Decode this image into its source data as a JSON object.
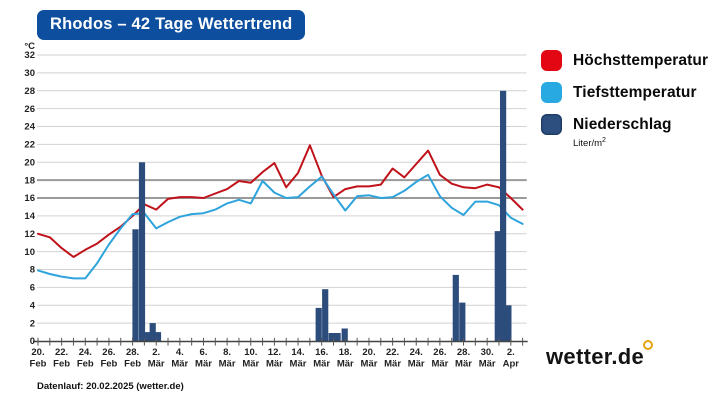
{
  "header": {
    "title": "Rhodos – 42 Tage Wettertrend"
  },
  "legend": {
    "items": [
      {
        "label": "Höchsttemperatur",
        "color": "#e30613"
      },
      {
        "label": "Tiefsttemperatur",
        "color": "#29a9e1"
      },
      {
        "label": "Niederschlag",
        "color": "#2d4f7f",
        "unit_base": "Liter/m",
        "unit_sup": "2"
      }
    ]
  },
  "footer": {
    "datenlauf": "Datenlauf: 20.02.2025 (wetter.de)"
  },
  "logo": {
    "text": "wetter.de",
    "ring_color": "#e6a410"
  },
  "chart_data": {
    "type": "line+bar",
    "x": {
      "days": 42,
      "start_label": "20. Feb",
      "end_label": "2. Apr",
      "tick_labels": [
        {
          "d": 0,
          "day": "20.",
          "month": "Feb"
        },
        {
          "d": 2,
          "day": "22.",
          "month": "Feb"
        },
        {
          "d": 4,
          "day": "24.",
          "month": "Feb"
        },
        {
          "d": 6,
          "day": "26.",
          "month": "Feb"
        },
        {
          "d": 8,
          "day": "28.",
          "month": "Feb"
        },
        {
          "d": 10,
          "day": "2.",
          "month": "Mär"
        },
        {
          "d": 12,
          "day": "4.",
          "month": "Mär"
        },
        {
          "d": 14,
          "day": "6.",
          "month": "Mär"
        },
        {
          "d": 16,
          "day": "8.",
          "month": "Mär"
        },
        {
          "d": 18,
          "day": "10.",
          "month": "Mär"
        },
        {
          "d": 20,
          "day": "12.",
          "month": "Mär"
        },
        {
          "d": 22,
          "day": "14.",
          "month": "Mär"
        },
        {
          "d": 24,
          "day": "16.",
          "month": "Mär"
        },
        {
          "d": 26,
          "day": "18.",
          "month": "Mär"
        },
        {
          "d": 28,
          "day": "20.",
          "month": "Mär"
        },
        {
          "d": 30,
          "day": "22.",
          "month": "Mär"
        },
        {
          "d": 32,
          "day": "24.",
          "month": "Mär"
        },
        {
          "d": 34,
          "day": "26.",
          "month": "Mär"
        },
        {
          "d": 36,
          "day": "28.",
          "month": "Mär"
        },
        {
          "d": 38,
          "day": "30.",
          "month": "Mär"
        },
        {
          "d": 40,
          "day": "2.",
          "month": "Apr"
        }
      ]
    },
    "y": {
      "label": "°C",
      "min": 0,
      "max": 32,
      "step": 2,
      "reference_gridlines": [
        16,
        18
      ]
    },
    "series": [
      {
        "name": "Höchsttemperatur",
        "type": "line",
        "color": "#c0121a",
        "values": [
          12.0,
          11.6,
          10.4,
          9.4,
          10.2,
          10.9,
          11.9,
          12.8,
          14.0,
          15.3,
          14.7,
          15.9,
          16.1,
          16.1,
          16.0,
          16.5,
          17.0,
          17.9,
          17.7,
          18.9,
          19.9,
          17.2,
          18.8,
          21.9,
          18.5,
          16.1,
          17.0,
          17.3,
          17.3,
          17.5,
          19.3,
          18.3,
          19.8,
          21.3,
          18.6,
          17.6,
          17.2,
          17.1,
          17.5,
          17.2,
          16.0,
          14.7
        ]
      },
      {
        "name": "Tiefsttemperatur",
        "type": "line",
        "color": "#2ea3dc",
        "values": [
          7.9,
          7.5,
          7.2,
          7.0,
          7.0,
          8.7,
          10.8,
          12.6,
          14.2,
          14.3,
          12.6,
          13.3,
          13.9,
          14.2,
          14.3,
          14.7,
          15.4,
          15.8,
          15.4,
          17.9,
          16.6,
          16.0,
          16.1,
          17.3,
          18.4,
          16.4,
          14.6,
          16.2,
          16.3,
          16.0,
          16.1,
          16.8,
          17.8,
          18.6,
          16.2,
          14.9,
          14.1,
          15.6,
          15.6,
          15.2,
          13.8,
          13.1
        ]
      },
      {
        "name": "Niederschlag",
        "type": "bar",
        "color": "#2c4d7c",
        "unit": "Liter/m²",
        "points": [
          {
            "d": 8.25,
            "v": 12.5
          },
          {
            "d": 8.8,
            "v": 20
          },
          {
            "d": 9.25,
            "v": 1
          },
          {
            "d": 9.7,
            "v": 2
          },
          {
            "d": 10.15,
            "v": 1
          },
          {
            "d": 23.75,
            "v": 3.7
          },
          {
            "d": 24.3,
            "v": 5.8
          },
          {
            "d": 24.85,
            "v": 0.9
          },
          {
            "d": 25.35,
            "v": 0.9
          },
          {
            "d": 25.95,
            "v": 1.4
          },
          {
            "d": 35.35,
            "v": 7.4
          },
          {
            "d": 35.9,
            "v": 4.3
          },
          {
            "d": 38.9,
            "v": 12.3
          },
          {
            "d": 39.35,
            "v": 28
          },
          {
            "d": 39.8,
            "v": 4
          }
        ]
      }
    ]
  }
}
